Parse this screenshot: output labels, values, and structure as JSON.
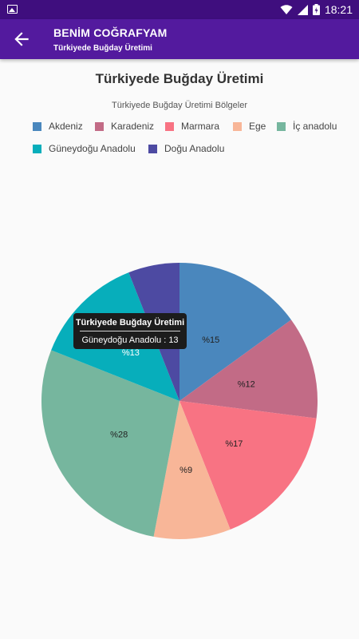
{
  "status_bar": {
    "time": "18:21",
    "icons": [
      "image-icon",
      "wifi-icon",
      "signal-icon",
      "battery-icon"
    ]
  },
  "app_bar": {
    "title": "BENİM COĞRAFYAM",
    "subtitle": "Türkiyede Buğday Üretimi",
    "back_icon": "arrow-back-icon"
  },
  "colors": {
    "status_bar": "#3f0e7e",
    "app_bar": "#531a9e"
  },
  "chart_data": {
    "type": "pie",
    "title": "Türkiyede Buğday Üretimi",
    "legend_title": "Türkiyede Buğday Üretimi Bölgeler",
    "legend_position": "top",
    "label_prefix": "%",
    "slices": [
      {
        "label": "Akdeniz",
        "value": 15,
        "color": "#4a87bd"
      },
      {
        "label": "Karadeniz",
        "value": 12,
        "color": "#c26b86"
      },
      {
        "label": "Marmara",
        "value": 17,
        "color": "#f87383"
      },
      {
        "label": "Ege",
        "value": 9,
        "color": "#f8b698"
      },
      {
        "label": "İç anadolu",
        "value": 28,
        "color": "#76b69e"
      },
      {
        "label": "Güneydoğu Anadolu",
        "value": 13,
        "color": "#07aebb"
      },
      {
        "label": "Doğu Anadolu",
        "value": 6,
        "color": "#4d4aa2"
      }
    ],
    "tooltip": {
      "title": "Türkiyede Buğday Üretimi",
      "label": "Güneydoğu Anadolu",
      "separator": " : ",
      "value": "13"
    }
  }
}
